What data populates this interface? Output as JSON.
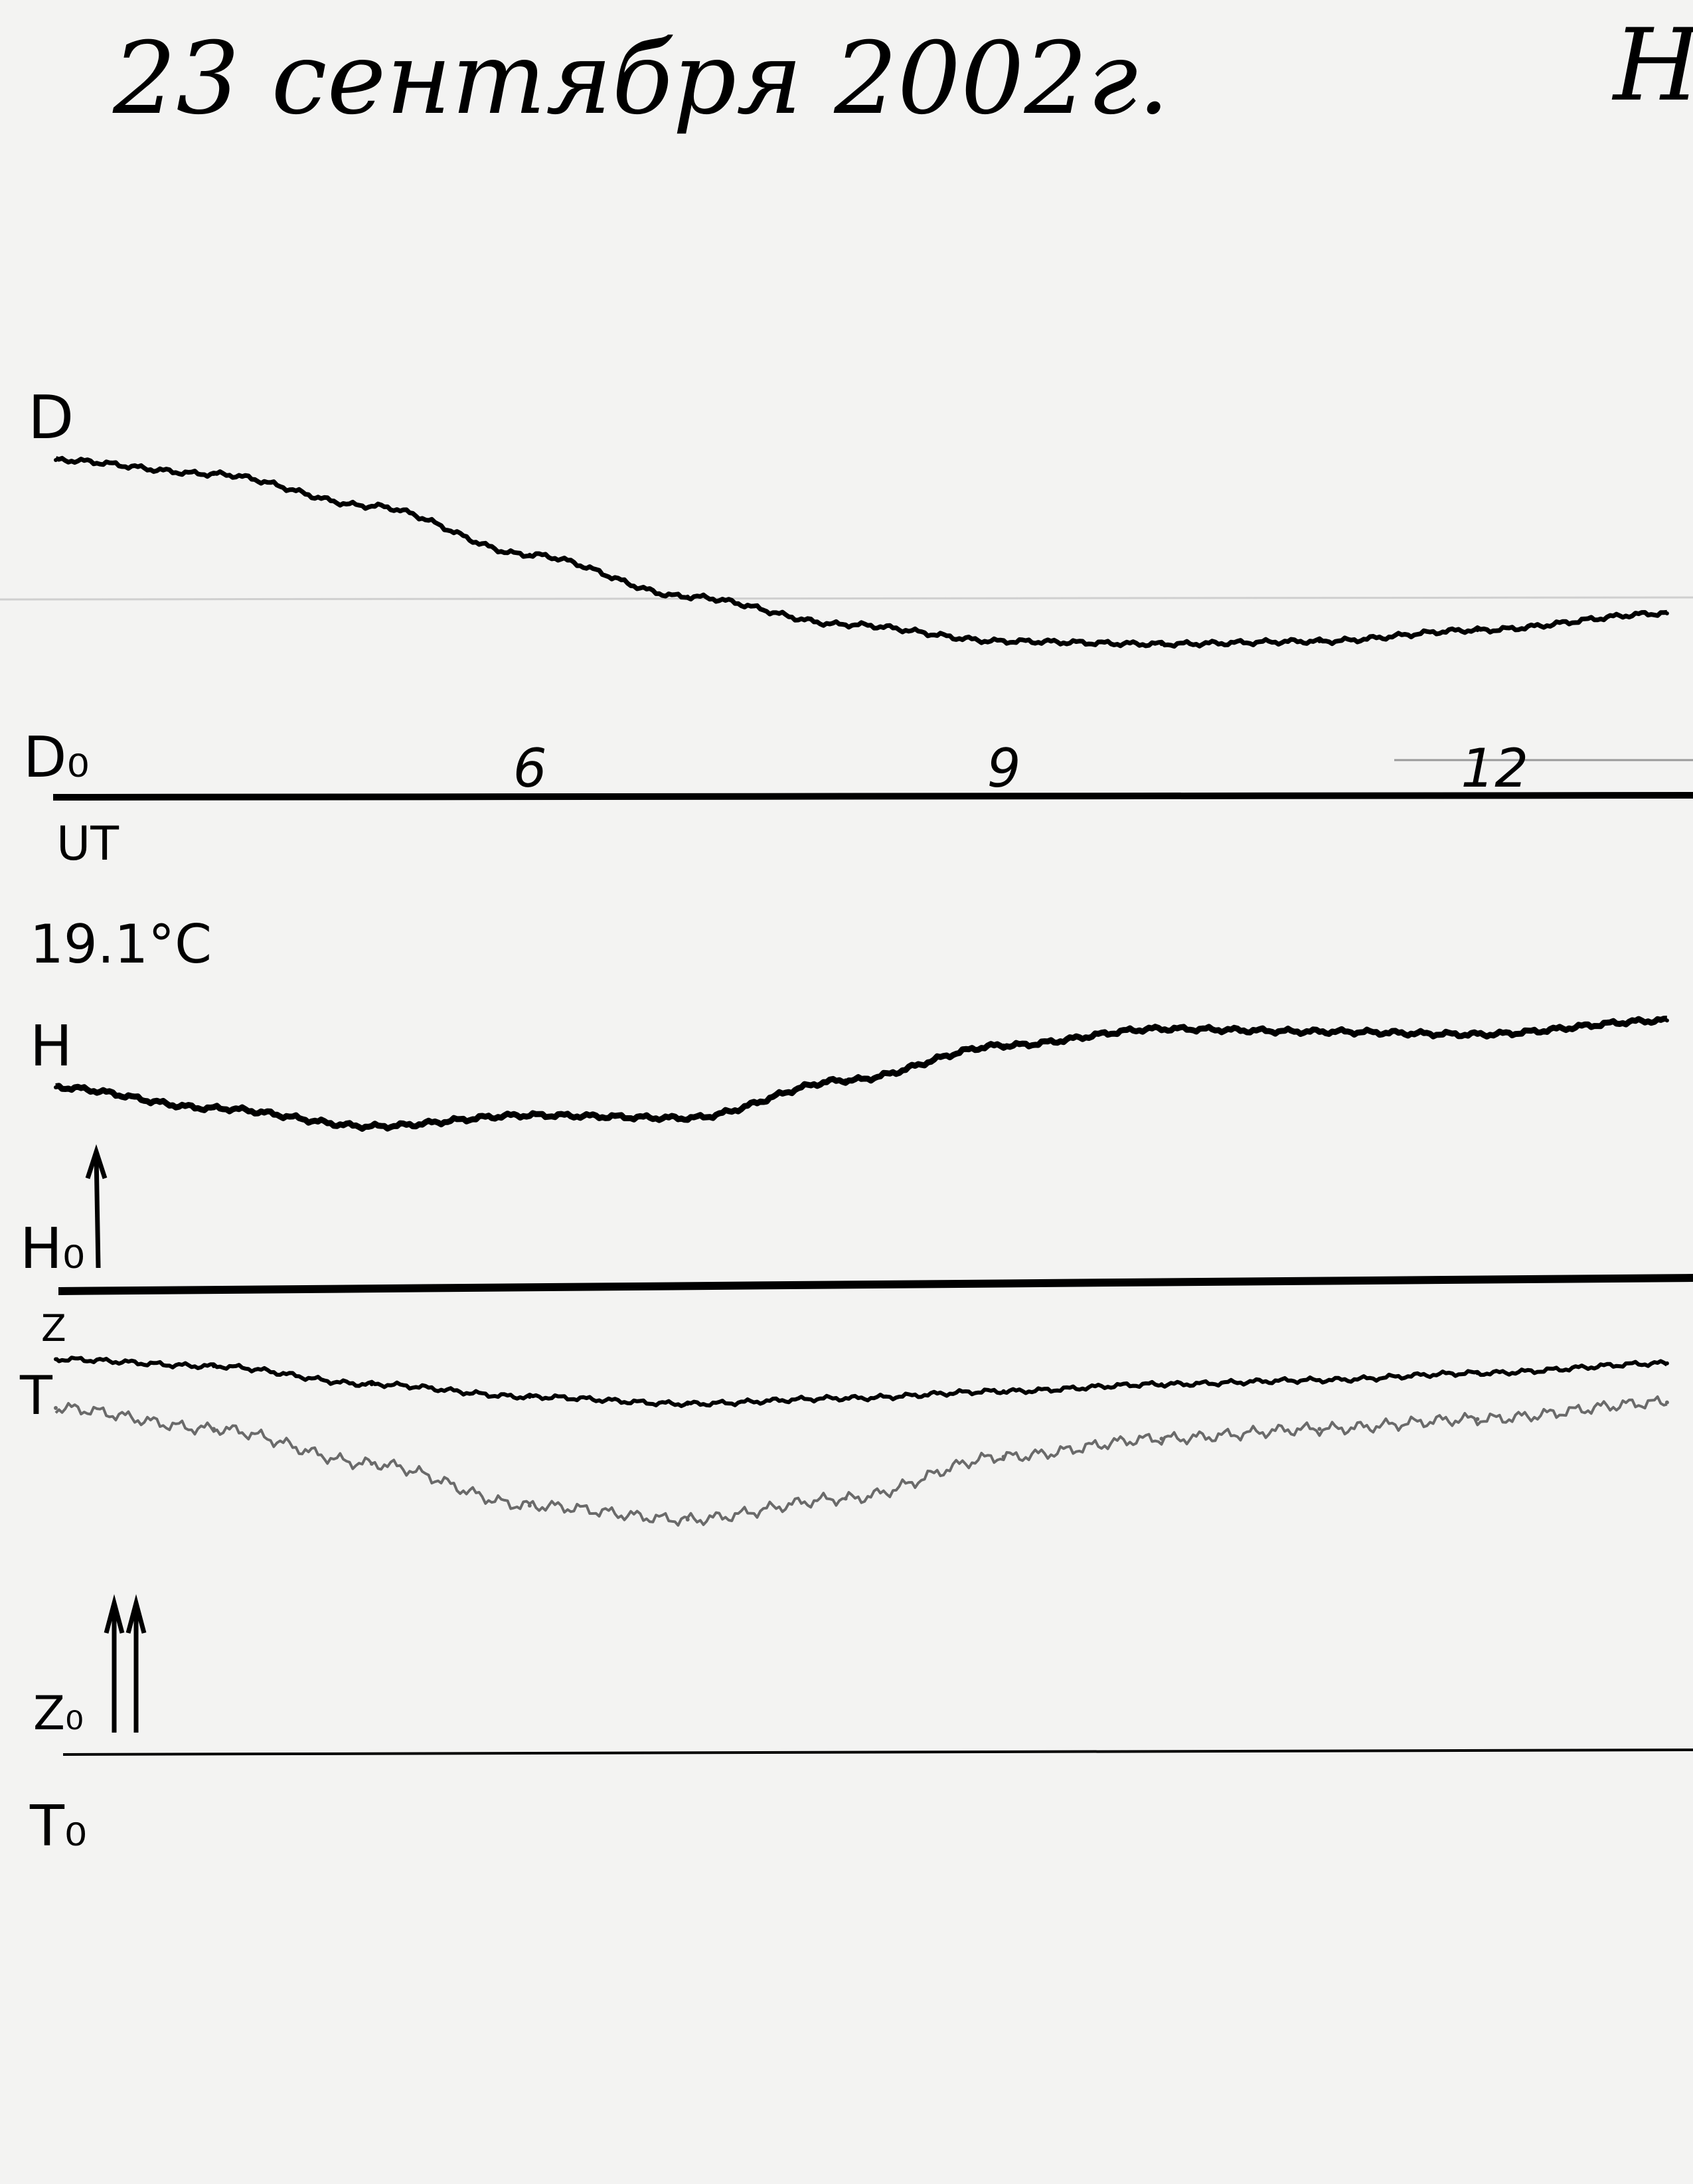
{
  "header": {
    "date_title": "23 сентября 2002г.",
    "corner_mark": "Н"
  },
  "labels": {
    "D": "D",
    "D0": "D₀",
    "UT": "UT",
    "temperature": "19.1°C",
    "H": "H",
    "H0": "H₀",
    "Z": "Z",
    "T": "T",
    "Z0": "Z₀",
    "T0": "T₀"
  },
  "colors": {
    "paper": "#f3f3f2",
    "ink": "#000000",
    "temperature_trace": "#6a6a6a"
  },
  "chart_data": {
    "type": "line",
    "title": "23 сентября 2002г.",
    "xlabel": "UT",
    "ylabel": "",
    "x_ticks": [
      "6",
      "9",
      "12"
    ],
    "x_tick_values": [
      6,
      9,
      12
    ],
    "xlim": [
      3,
      13.2
    ],
    "grid": false,
    "x": [
      3,
      4,
      5,
      6,
      7,
      8,
      9,
      10,
      11,
      12,
      13.2
    ],
    "series": [
      {
        "name": "D",
        "baseline": "D₀",
        "values": [
          242,
          232,
          209,
          174,
          144,
          124,
          112,
          110,
          112,
          120,
          132
        ]
      },
      {
        "name": "H",
        "baseline": "H₀",
        "values": [
          145,
          130,
          117,
          125,
          123,
          150,
          175,
          187,
          185,
          183,
          193
        ]
      },
      {
        "name": "Z",
        "baseline": "Z₀",
        "values": [
          283,
          278,
          265,
          256,
          251,
          255,
          260,
          265,
          268,
          273,
          280
        ]
      },
      {
        "name": "T",
        "baseline": "T₀",
        "values": [
          248,
          233,
          208,
          178,
          168,
          183,
          213,
          226,
          233,
          240,
          252
        ]
      }
    ]
  }
}
